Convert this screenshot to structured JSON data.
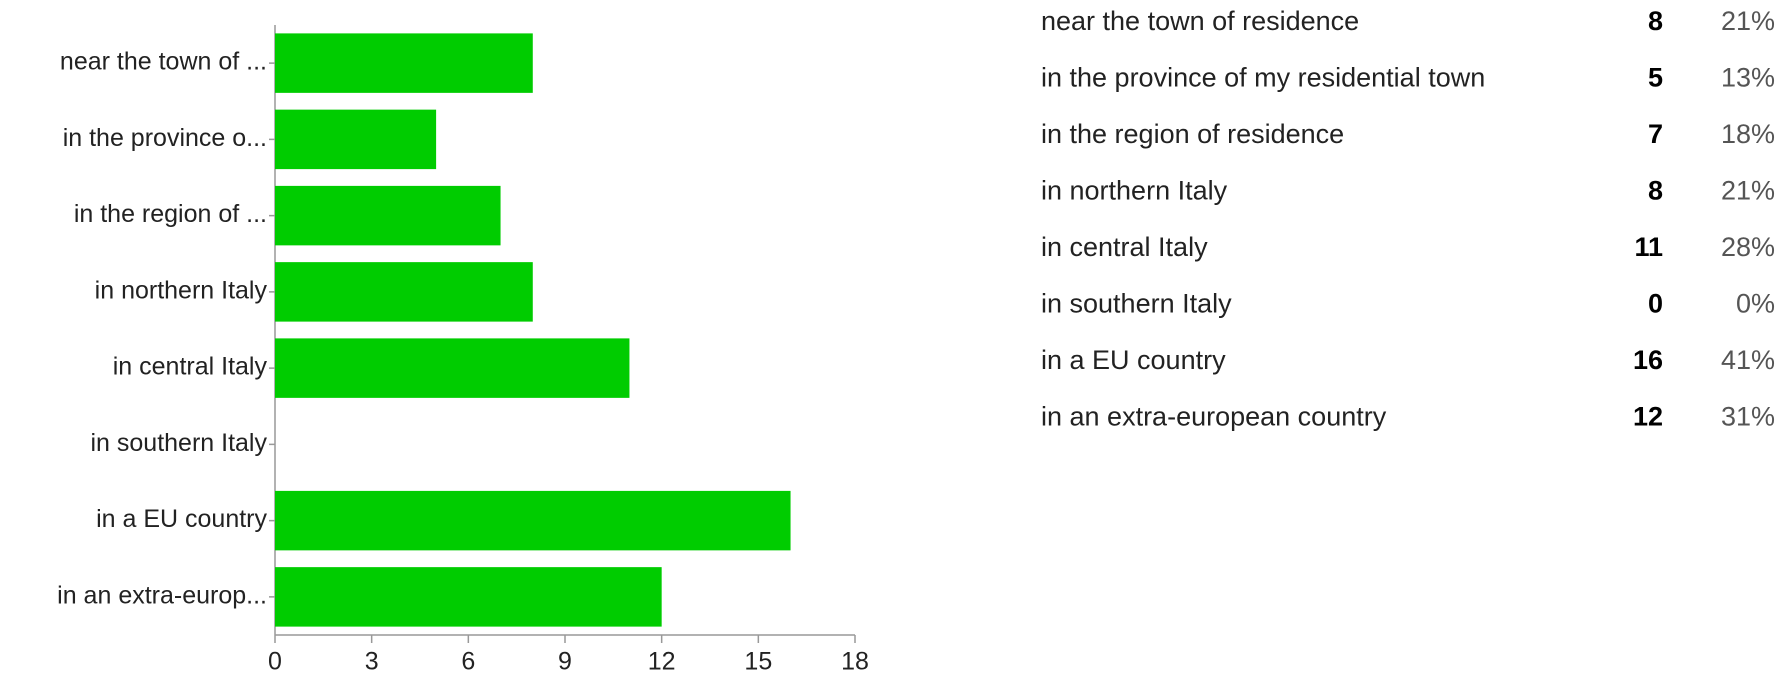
{
  "chart_data": {
    "type": "bar",
    "orientation": "horizontal",
    "categories": [
      "near the town of ...",
      "in the province o...",
      "in the region of ...",
      "in northern Italy",
      "in central Italy",
      "in southern Italy",
      "in a EU country",
      "in an extra-europ..."
    ],
    "values": [
      8,
      5,
      7,
      8,
      11,
      0,
      16,
      12
    ],
    "color": "#00cc00",
    "xlim": [
      0,
      18
    ],
    "xticks": [
      0,
      3,
      6,
      9,
      12,
      15,
      18
    ],
    "grid": false
  },
  "table": {
    "rows": [
      {
        "label": "near the town of residence",
        "percent": "21%"
      },
      {
        "label": "in the province of my residential town",
        "percent": "13%"
      },
      {
        "label": "in the region of residence",
        "percent": "18%"
      },
      {
        "label": "in northern Italy",
        "percent": "21%"
      },
      {
        "label": "in central Italy",
        "percent": "28%"
      },
      {
        "label": "in southern Italy",
        "percent": "0%"
      },
      {
        "label": "in a EU country",
        "percent": "41%"
      },
      {
        "label": "in an extra-european country",
        "percent": "31%"
      }
    ]
  }
}
